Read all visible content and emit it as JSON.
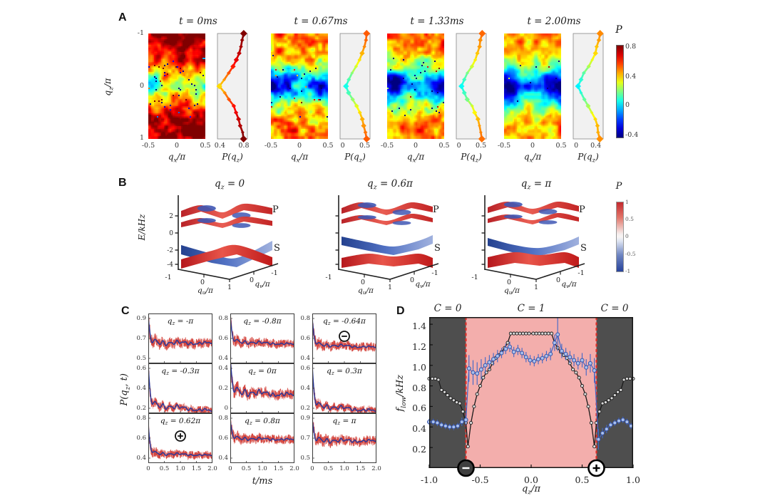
{
  "figure": {
    "background": "#ffffff"
  },
  "chart_data": {
    "type": "multi-panel scientific figure (heatmap, 3d-surface, line, scatter)",
    "panels": {
      "A": {
        "label": "A",
        "description": "Polarization heatmaps over (q_x/π, q_z/π) at four evolution times, each with side profile P(q_z); jet colormap",
        "ylabel": "q_z/π",
        "yticks": [
          "-1",
          "0",
          "1"
        ],
        "xlabel": "q_x/π",
        "xticks": [
          "-0.5",
          "0",
          "0.5"
        ],
        "side_xlabel": "P(q_z)",
        "colorbar": {
          "label": "P",
          "vmin": -0.4,
          "vmax": 0.8,
          "ticks": [
            "0.8",
            "0.4",
            "0",
            "-0.4"
          ],
          "colormap": "jet"
        },
        "qz_profile_points": [
          -1,
          -0.8,
          -0.6,
          -0.4,
          -0.2,
          0,
          0.2,
          0.4,
          0.6,
          0.8,
          1
        ],
        "maps": [
          {
            "title": "t = 0ms",
            "side_ticks": [
              0.4,
              0.8
            ],
            "side_range": [
              0.36,
              0.86
            ],
            "P_of_qz": [
              0.8,
              0.76,
              0.71,
              0.64,
              0.52,
              0.4,
              0.52,
              0.64,
              0.71,
              0.76,
              0.8
            ],
            "noise": 0.27,
            "edge_depth": 0.3,
            "speckle": 0.02,
            "seed": 101
          },
          {
            "title": "t = 0.67ms",
            "side_ticks": [
              0,
              0.5
            ],
            "side_range": [
              -0.06,
              0.62
            ],
            "P_of_qz": [
              0.55,
              0.5,
              0.44,
              0.33,
              0.18,
              0.07,
              0.18,
              0.33,
              0.44,
              0.5,
              0.55
            ],
            "noise": 0.3,
            "edge_depth": 0.45,
            "speckle": 0.012,
            "seed": 202
          },
          {
            "title": "t = 1.33ms",
            "side_ticks": [
              0,
              0.5
            ],
            "side_range": [
              -0.06,
              0.62
            ],
            "P_of_qz": [
              0.52,
              0.48,
              0.42,
              0.31,
              0.16,
              0.06,
              0.16,
              0.31,
              0.42,
              0.48,
              0.52
            ],
            "noise": 0.26,
            "edge_depth": 0.45,
            "speckle": 0.008,
            "seed": 303
          },
          {
            "title": "t = 2.00ms",
            "side_ticks": [
              0,
              0.4
            ],
            "side_range": [
              -0.06,
              0.55
            ],
            "P_of_qz": [
              0.48,
              0.44,
              0.38,
              0.27,
              0.13,
              0.03,
              0.13,
              0.27,
              0.38,
              0.44,
              0.48
            ],
            "noise": 0.22,
            "edge_depth": 0.5,
            "speckle": 0.005,
            "seed": 404
          }
        ]
      },
      "B": {
        "label": "B",
        "description": "Band-structure surfaces E/kHz over (q_u/π, q_v/π) for three q_z cuts; S and P band groups colored by polarization (red +1, blue -1)",
        "ylabel": "E/kHz",
        "yticks": [
          "2",
          "0",
          "-2",
          "-4"
        ],
        "xlabel_u": "q_u/π",
        "xlabel_v": "q_v/π",
        "floor_ticks": [
          "-1",
          "0",
          "1",
          "0",
          "-1"
        ],
        "band_labels": [
          "P",
          "S"
        ],
        "colorbar": {
          "label": "P",
          "ticks": [
            "1",
            "0.5",
            "0",
            "-0.5",
            "-1"
          ],
          "colormap": "red-white-blue"
        },
        "plots": [
          {
            "title": "q_z = 0",
            "style": "dirac"
          },
          {
            "title": "q_z = 0.6π",
            "style": "gapped"
          },
          {
            "title": "q_z = π",
            "style": "gapped2"
          }
        ]
      },
      "C": {
        "label": "C",
        "ylabel": "P(q_z, t)",
        "xlabel": "t/ms",
        "xticks": [
          "0",
          "0.5",
          "1.0",
          "1.5",
          "2.0"
        ],
        "xlim": [
          0,
          2
        ],
        "subplots": [
          {
            "label": "q_z = -π",
            "yticks": [
              "0.9",
              "0.7",
              "0.5"
            ],
            "start": 0.88,
            "plateau": 0.66,
            "slope": -0.005,
            "wiggle": 0.028,
            "noise": 0.05,
            "sym": "",
            "seed": 11
          },
          {
            "label": "q_z = -0.8π",
            "yticks": [
              "0.8",
              "0.6",
              "0.4"
            ],
            "start": 0.8,
            "plateau": 0.57,
            "slope": -0.015,
            "wiggle": 0.02,
            "noise": 0.045,
            "sym": "",
            "seed": 12
          },
          {
            "label": "q_z = -0.64π",
            "yticks": [
              "0.8",
              "0.6",
              "0.4"
            ],
            "start": 0.78,
            "plateau": 0.54,
            "slope": -0.015,
            "wiggle": 0.018,
            "noise": 0.045,
            "sym": "minus",
            "seed": 13
          },
          {
            "label": "q_z = -0.3π",
            "yticks": [
              "0.6",
              "0.4",
              "0.2"
            ],
            "start": 0.6,
            "plateau": 0.24,
            "slope": -0.035,
            "wiggle": 0.03,
            "noise": 0.04,
            "sym": "",
            "seed": 14
          },
          {
            "label": "q_z = 0π",
            "yticks": [
              "0.4",
              "0.2",
              "0"
            ],
            "start": 0.46,
            "plateau": 0.17,
            "slope": -0.02,
            "wiggle": 0.04,
            "noise": 0.05,
            "sym": "",
            "seed": 15
          },
          {
            "label": "q_z = 0.3π",
            "yticks": [
              "0.6",
              "0.4",
              "0.2"
            ],
            "start": 0.6,
            "plateau": 0.23,
            "slope": -0.03,
            "wiggle": 0.028,
            "noise": 0.04,
            "sym": "",
            "seed": 16
          },
          {
            "label": "q_z = 0.62π",
            "yticks": [
              "0.8",
              "0.6",
              "0.4"
            ],
            "start": 0.72,
            "plateau": 0.45,
            "slope": -0.012,
            "wiggle": 0.016,
            "noise": 0.04,
            "sym": "plus",
            "seed": 17
          },
          {
            "label": "q_z = 0.8π",
            "yticks": [
              "0.8",
              "0.6",
              "0.4"
            ],
            "start": 0.76,
            "plateau": 0.6,
            "slope": -0.008,
            "wiggle": 0.018,
            "noise": 0.045,
            "sym": "",
            "seed": 18
          },
          {
            "label": "q_z = π",
            "yticks": [
              "0.9",
              "0.7",
              "0.5"
            ],
            "start": 0.86,
            "plateau": 0.68,
            "slope": -0.005,
            "wiggle": 0.026,
            "noise": 0.05,
            "sym": "",
            "seed": 19
          }
        ]
      },
      "D": {
        "label": "D",
        "ylabel": "f_low/kHz",
        "xlabel": "q_z/π",
        "yticks": [
          "1.4",
          "1.2",
          "1.0",
          "0.8",
          "0.6",
          "0.4",
          "0.2"
        ],
        "ytick_values": [
          1.4,
          1.2,
          1.0,
          0.8,
          0.6,
          0.4,
          0.2
        ],
        "xticks": [
          "-1.0",
          "-0.5",
          "0.0",
          "0.5",
          "1.0"
        ],
        "xtick_values": [
          -1.0,
          -0.5,
          0.0,
          0.5,
          1.0
        ],
        "xlim": [
          -1,
          1
        ],
        "ylim": [
          0,
          1.47
        ],
        "regions": [
          {
            "label": "C = 0",
            "from": -1.0,
            "to": -0.64,
            "color": "#4e4e4e"
          },
          {
            "label": "C = 1",
            "from": -0.64,
            "to": 0.64,
            "color": "#f3aeac"
          },
          {
            "label": "C = 0",
            "from": 0.64,
            "to": 1.0,
            "color": "#4e4e4e"
          }
        ],
        "boundary_lines": [
          -0.64,
          0.64
        ],
        "boundary_line_color": "#e02f28",
        "axis_markers": [
          {
            "x": -0.64,
            "sym": "minus"
          },
          {
            "x": 0.64,
            "sym": "plus"
          }
        ],
        "series": [
          {
            "name": "theory-black",
            "color": "#1a1a1a",
            "marker_fill": "#d9d9d9",
            "x": [
              -1.0,
              -0.97,
              -0.94,
              -0.91,
              -0.88,
              -0.85,
              -0.82,
              -0.79,
              -0.76,
              -0.73,
              -0.7,
              -0.67,
              -0.64,
              -0.62,
              -0.59,
              -0.56,
              -0.53,
              -0.5,
              -0.47,
              -0.44,
              -0.41,
              -0.38,
              -0.35,
              -0.32,
              -0.29,
              -0.26,
              -0.23,
              -0.2,
              -0.17,
              -0.14,
              -0.11,
              -0.08,
              -0.05,
              -0.02,
              0.02,
              0.05,
              0.08,
              0.11,
              0.14,
              0.17,
              0.2,
              0.23,
              0.26,
              0.29,
              0.32,
              0.35,
              0.38,
              0.41,
              0.44,
              0.47,
              0.5,
              0.53,
              0.56,
              0.59,
              0.62,
              0.64,
              0.67,
              0.7,
              0.73,
              0.76,
              0.79,
              0.82,
              0.85,
              0.88,
              0.91,
              0.94,
              0.97,
              1.0
            ],
            "y": [
              0.87,
              0.87,
              0.87,
              0.86,
              0.76,
              0.74,
              0.71,
              0.68,
              0.66,
              0.64,
              0.63,
              0.55,
              0.44,
              0.21,
              0.44,
              0.6,
              0.72,
              0.8,
              0.88,
              0.93,
              0.96,
              1.02,
              1.07,
              1.1,
              1.13,
              1.17,
              1.22,
              1.31,
              1.31,
              1.31,
              1.31,
              1.31,
              1.31,
              1.31,
              1.31,
              1.31,
              1.31,
              1.31,
              1.31,
              1.31,
              1.31,
              1.22,
              1.17,
              1.13,
              1.1,
              1.07,
              1.02,
              0.96,
              0.93,
              0.88,
              0.8,
              0.72,
              0.6,
              0.44,
              0.21,
              0.44,
              0.55,
              0.63,
              0.64,
              0.66,
              0.68,
              0.71,
              0.74,
              0.76,
              0.86,
              0.87,
              0.87,
              0.87
            ]
          },
          {
            "name": "experiment-blue",
            "color": "#3c5cbe",
            "marker_fill": "#a9c0ec",
            "x": [
              -1.0,
              -0.96,
              -0.92,
              -0.88,
              -0.84,
              -0.8,
              -0.76,
              -0.72,
              -0.68,
              -0.64,
              -0.61,
              -0.57,
              -0.53,
              -0.49,
              -0.45,
              -0.41,
              -0.37,
              -0.33,
              -0.29,
              -0.25,
              -0.21,
              -0.17,
              -0.13,
              -0.09,
              -0.05,
              -0.01,
              0.03,
              0.07,
              0.11,
              0.15,
              0.19,
              0.23,
              0.26,
              0.3,
              0.34,
              0.38,
              0.42,
              0.46,
              0.5,
              0.54,
              0.58,
              0.62,
              0.66,
              0.7,
              0.74,
              0.78,
              0.82,
              0.86,
              0.9,
              0.94,
              0.98
            ],
            "y": [
              0.45,
              0.45,
              0.44,
              0.42,
              0.41,
              0.4,
              0.4,
              0.41,
              0.45,
              0.47,
              0.97,
              0.93,
              0.92,
              0.96,
              1.0,
              1.03,
              1.06,
              1.09,
              1.12,
              1.16,
              1.18,
              1.13,
              1.15,
              1.12,
              1.08,
              1.05,
              1.04,
              1.06,
              1.07,
              1.09,
              1.11,
              1.22,
              1.3,
              1.14,
              1.11,
              1.08,
              1.05,
              1.02,
              1.05,
              0.98,
              1.02,
              0.95,
              0.28,
              0.34,
              0.38,
              0.42,
              0.44,
              0.46,
              0.47,
              0.45,
              0.41
            ],
            "err": [
              0.03,
              0.03,
              0.03,
              0.03,
              0.03,
              0.03,
              0.03,
              0.03,
              0.04,
              0.05,
              0.13,
              0.12,
              0.11,
              0.1,
              0.08,
              0.07,
              0.06,
              0.06,
              0.05,
              0.05,
              0.05,
              0.05,
              0.05,
              0.05,
              0.05,
              0.05,
              0.05,
              0.05,
              0.05,
              0.05,
              0.06,
              0.08,
              0.16,
              0.07,
              0.06,
              0.06,
              0.06,
              0.06,
              0.07,
              0.08,
              0.09,
              0.12,
              0.1,
              0.05,
              0.04,
              0.03,
              0.03,
              0.03,
              0.03,
              0.03,
              0.03
            ]
          }
        ]
      }
    }
  }
}
